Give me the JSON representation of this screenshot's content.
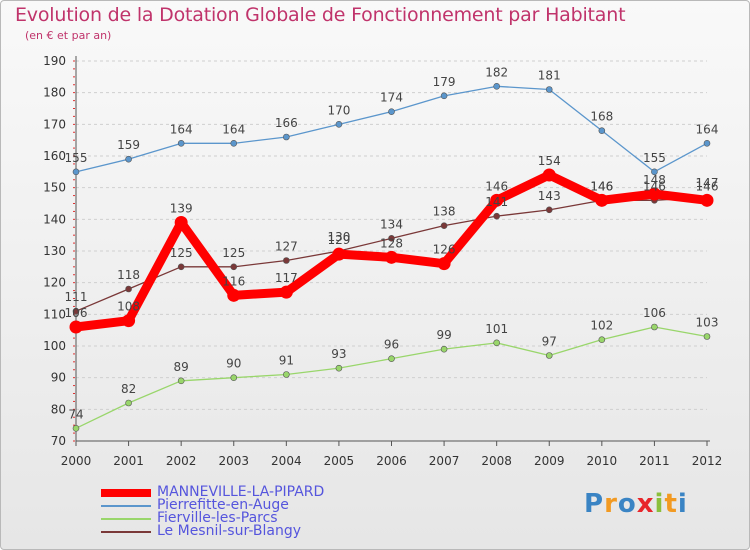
{
  "header": {
    "title": "Evolution de la Dotation Globale de Fonctionnement par Habitant",
    "subtitle": "(en € et par an)"
  },
  "chart_data": {
    "type": "line",
    "title": "Evolution de la Dotation Globale de Fonctionnement par Habitant",
    "subtitle": "(en € et par an)",
    "xlabel": "",
    "ylabel": "",
    "x": [
      2000,
      2001,
      2002,
      2003,
      2004,
      2005,
      2006,
      2007,
      2008,
      2009,
      2010,
      2011,
      2012
    ],
    "ylim": [
      70,
      190
    ],
    "yticks": [
      70,
      80,
      90,
      100,
      110,
      120,
      130,
      140,
      150,
      160,
      170,
      180,
      190
    ],
    "grid": "horizontal dashed",
    "legend_position": "bottom-left",
    "series": [
      {
        "name": "MANNEVILLE-LA-PIPARD",
        "color": "#ff0000",
        "values": [
          106,
          108,
          139,
          116,
          117,
          129,
          128,
          126,
          146,
          154,
          146,
          148,
          146
        ]
      },
      {
        "name": "Pierrefitte-en-Auge",
        "color": "#5b96cc",
        "values": [
          155,
          159,
          164,
          164,
          166,
          170,
          174,
          179,
          182,
          181,
          168,
          155,
          164
        ]
      },
      {
        "name": "Fierville-les-Parcs",
        "color": "#99d66b",
        "values": [
          74,
          82,
          89,
          90,
          91,
          93,
          96,
          99,
          101,
          97,
          102,
          106,
          103
        ]
      },
      {
        "name": "Le Mesnil-sur-Blangy",
        "color": "#7a3838",
        "values": [
          111,
          118,
          125,
          125,
          127,
          130,
          134,
          138,
          141,
          143,
          146,
          146,
          147
        ]
      }
    ]
  },
  "logo": {
    "text": "Proxiti",
    "colors": [
      "#3a84c4",
      "#f29a22",
      "#3a84c4",
      "#e8262b",
      "#8bbf3c",
      "#f29a22",
      "#3a84c4"
    ]
  }
}
